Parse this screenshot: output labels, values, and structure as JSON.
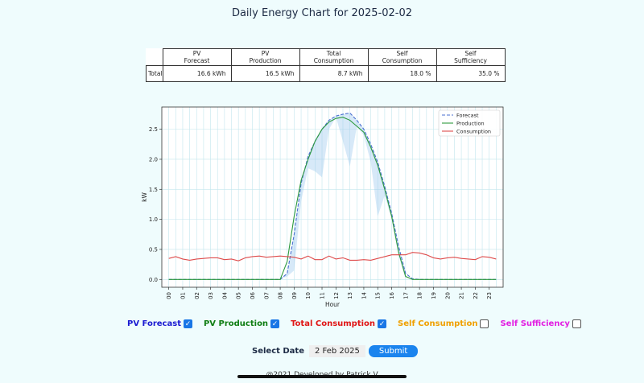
{
  "page": {
    "title": "Daily Energy Chart for 2025-02-02"
  },
  "summary": {
    "headers": [
      [
        "PV",
        "Forecast"
      ],
      [
        "PV",
        "Production"
      ],
      [
        "Total",
        "Consumption"
      ],
      [
        "Self",
        "Consumption"
      ],
      [
        "Self",
        "Sufficiency"
      ]
    ],
    "row_label": "Total",
    "values": [
      "16.6 kWh",
      "16.5 kWh",
      "8.7 kWh",
      "18.0 %",
      "35.0 %"
    ]
  },
  "chart_data": {
    "type": "line",
    "x_ticks": [
      "00",
      "01",
      "02",
      "03",
      "04",
      "05",
      "06",
      "07",
      "08",
      "09",
      "10",
      "11",
      "12",
      "13",
      "14",
      "15",
      "16",
      "17",
      "18",
      "19",
      "20",
      "21",
      "22",
      "23"
    ],
    "xlabel": "Hour",
    "ylabel": "kW",
    "ylim": [
      -0.13,
      2.87
    ],
    "xlim": [
      -0.5,
      24.0
    ],
    "y_ticks": [
      "0.0",
      "0.5",
      "1.0",
      "1.5",
      "2.0",
      "2.5"
    ],
    "y_tick_values": [
      0.0,
      0.5,
      1.0,
      1.5,
      2.0,
      2.5
    ],
    "grid": true,
    "legend": "top-right",
    "series": [
      {
        "name": "Forecast",
        "color": "#4a6fd0",
        "dashed": true,
        "x": [
          0,
          1,
          2,
          3,
          4,
          5,
          6,
          7,
          8,
          8.5,
          9,
          9.5,
          10,
          10.5,
          11,
          11.5,
          12,
          12.5,
          13,
          13.5,
          14,
          14.5,
          15,
          15.5,
          16,
          16.5,
          17,
          17.5,
          18,
          19,
          20,
          21,
          22,
          23,
          23.5
        ],
        "y": [
          0,
          0,
          0,
          0,
          0,
          0,
          0,
          0,
          0,
          0.1,
          0.75,
          1.6,
          2.05,
          2.3,
          2.5,
          2.65,
          2.72,
          2.75,
          2.77,
          2.65,
          2.5,
          2.25,
          1.95,
          1.55,
          1.1,
          0.55,
          0.1,
          0.01,
          0,
          0,
          0,
          0,
          0,
          0,
          0
        ]
      },
      {
        "name": "Production",
        "color": "#2e9a3e",
        "dashed": false,
        "x": [
          0,
          1,
          2,
          3,
          4,
          5,
          6,
          7,
          8,
          8.5,
          9,
          9.5,
          10,
          10.5,
          11,
          11.5,
          12,
          12.5,
          13,
          13.5,
          14,
          14.5,
          15,
          15.5,
          16,
          16.5,
          17,
          17.5,
          18,
          19,
          20,
          21,
          22,
          23,
          23.5
        ],
        "y": [
          0,
          0,
          0,
          0,
          0,
          0,
          0,
          0,
          0,
          0.3,
          1.05,
          1.65,
          2.0,
          2.3,
          2.5,
          2.62,
          2.68,
          2.7,
          2.65,
          2.55,
          2.45,
          2.2,
          1.9,
          1.5,
          1.05,
          0.45,
          0.05,
          0,
          0,
          0,
          0,
          0,
          0,
          0,
          0
        ]
      },
      {
        "name": "Consumption",
        "color": "#de4b4b",
        "dashed": false,
        "x": [
          0,
          0.5,
          1,
          1.5,
          2,
          2.5,
          3,
          3.5,
          4,
          4.5,
          5,
          5.5,
          6,
          6.5,
          7,
          7.5,
          8,
          8.5,
          9,
          9.5,
          10,
          10.5,
          11,
          11.5,
          12,
          12.5,
          13,
          13.5,
          14,
          14.5,
          15,
          15.5,
          16,
          16.5,
          17,
          17.5,
          18,
          18.5,
          19,
          19.5,
          20,
          20.5,
          21,
          21.5,
          22,
          22.5,
          23,
          23.5
        ],
        "y": [
          0.35,
          0.38,
          0.34,
          0.32,
          0.34,
          0.35,
          0.36,
          0.36,
          0.33,
          0.34,
          0.31,
          0.36,
          0.38,
          0.39,
          0.37,
          0.38,
          0.39,
          0.38,
          0.37,
          0.34,
          0.39,
          0.33,
          0.33,
          0.39,
          0.34,
          0.36,
          0.32,
          0.32,
          0.33,
          0.32,
          0.35,
          0.38,
          0.41,
          0.41,
          0.41,
          0.45,
          0.44,
          0.41,
          0.36,
          0.34,
          0.36,
          0.37,
          0.35,
          0.34,
          0.33,
          0.38,
          0.37,
          0.34
        ]
      }
    ],
    "shade_lower": {
      "x": [
        8,
        8.5,
        9,
        9.5,
        10,
        10.5,
        11,
        11.5,
        12,
        12.5,
        13,
        13.5,
        14,
        14.5,
        15,
        15.5,
        16,
        16.5,
        17
      ],
      "y": [
        0,
        0.05,
        0.15,
        1.3,
        1.85,
        1.8,
        1.7,
        2.5,
        2.7,
        2.3,
        1.88,
        2.55,
        2.4,
        1.95,
        1.05,
        1.4,
        1.0,
        0.4,
        0
      ]
    }
  },
  "controls": {
    "items": [
      {
        "label": "PV Forecast",
        "color": "#1a1ad1",
        "checked": true
      },
      {
        "label": "PV Production",
        "color": "#0f7d12",
        "checked": true
      },
      {
        "label": "Total Consumption",
        "color": "#e01515",
        "checked": true
      },
      {
        "label": "Self Consumption",
        "color": "#f0a000",
        "checked": false
      },
      {
        "label": "Self Sufficiency",
        "color": "#e21ee2",
        "checked": false
      }
    ],
    "check_glyph": "✓"
  },
  "date": {
    "label": "Select Date",
    "value": "2 Feb 2025",
    "submit": "Submit"
  },
  "footer": {
    "text": "@2021 Developed by Patrick V"
  }
}
